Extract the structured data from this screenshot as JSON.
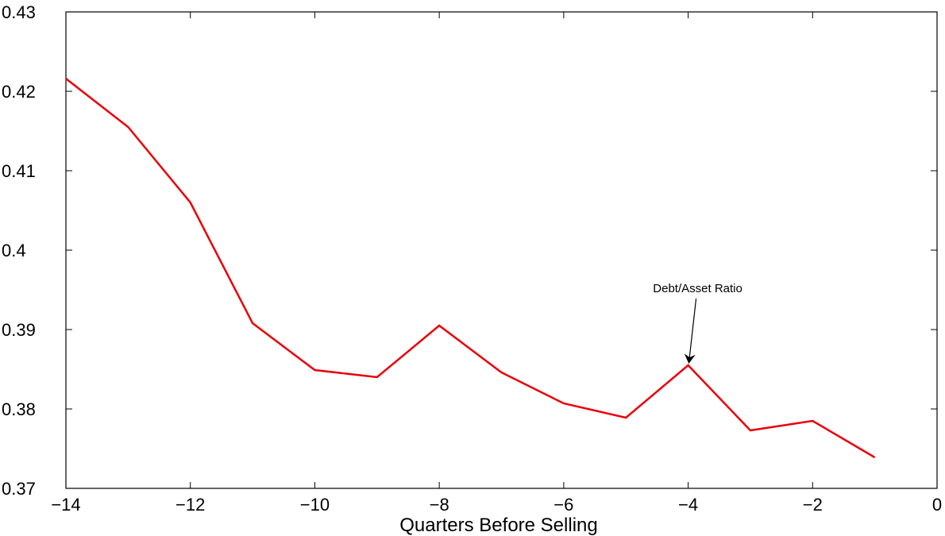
{
  "chart_data": {
    "type": "line",
    "title": "",
    "xlabel": "Quarters Before Selling",
    "ylabel": "",
    "xlim": [
      -14,
      0
    ],
    "ylim": [
      0.37,
      0.43
    ],
    "grid": false,
    "x_ticks": [
      -14,
      -12,
      -10,
      -8,
      -6,
      -4,
      -2,
      0
    ],
    "x_tick_labels": [
      "−14",
      "−12",
      "−10",
      "−8",
      "−6",
      "−4",
      "−2",
      "0"
    ],
    "y_ticks": [
      0.37,
      0.38,
      0.39,
      0.4,
      0.41,
      0.42,
      0.43
    ],
    "y_tick_labels": [
      "0.37",
      "0.38",
      "0.39",
      "0.4",
      "0.41",
      "0.42",
      "0.43"
    ],
    "series": [
      {
        "color": "#e8000b",
        "x": [
          -14,
          -13,
          -12,
          -11,
          -10,
          -9,
          -8,
          -7,
          -6,
          -5,
          -4,
          -3,
          -2,
          -1
        ],
        "y": [
          0.4216,
          0.4155,
          0.406,
          0.3908,
          0.3849,
          0.384,
          0.3905,
          0.3846,
          0.3807,
          0.3789,
          0.3855,
          0.3773,
          0.3785,
          0.3739
        ]
      }
    ],
    "annotations": [
      {
        "text": "Debt/Asset Ratio",
        "arrow_to": {
          "x": -4,
          "y": 0.3855
        }
      }
    ]
  }
}
